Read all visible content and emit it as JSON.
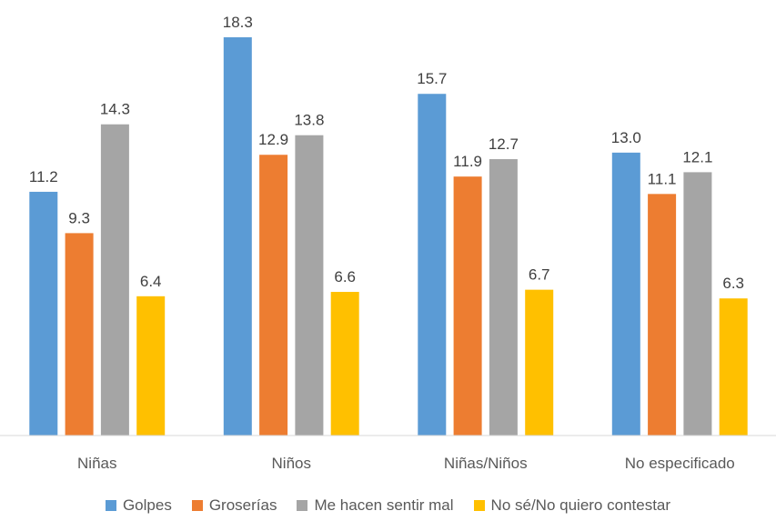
{
  "chart_data": {
    "type": "bar",
    "categories": [
      "Niñas",
      "Niños",
      "Niñas/Niños",
      "No especificado"
    ],
    "series": [
      {
        "name": "Golpes",
        "color": "#5B9BD5",
        "values": [
          11.2,
          18.3,
          15.7,
          13.0
        ],
        "labels": [
          "11.2",
          "18.3",
          "15.7",
          "13.0"
        ]
      },
      {
        "name": "Groserías",
        "color": "#ED7D31",
        "values": [
          9.3,
          12.9,
          11.9,
          11.1
        ],
        "labels": [
          "9.3",
          "12.9",
          "11.9",
          "11.1"
        ]
      },
      {
        "name": "Me hacen sentir mal",
        "color": "#A5A5A5",
        "values": [
          14.3,
          13.8,
          12.7,
          12.1
        ],
        "labels": [
          "14.3",
          "13.8",
          "12.7",
          "12.1"
        ]
      },
      {
        "name": "No sé/No quiero contestar",
        "color": "#FFC000",
        "values": [
          6.4,
          6.6,
          6.7,
          6.3
        ],
        "labels": [
          "6.4",
          "6.6",
          "6.7",
          "6.3"
        ]
      }
    ],
    "ylim": [
      0,
      18.3
    ],
    "grid": false,
    "legend_position": "bottom"
  }
}
